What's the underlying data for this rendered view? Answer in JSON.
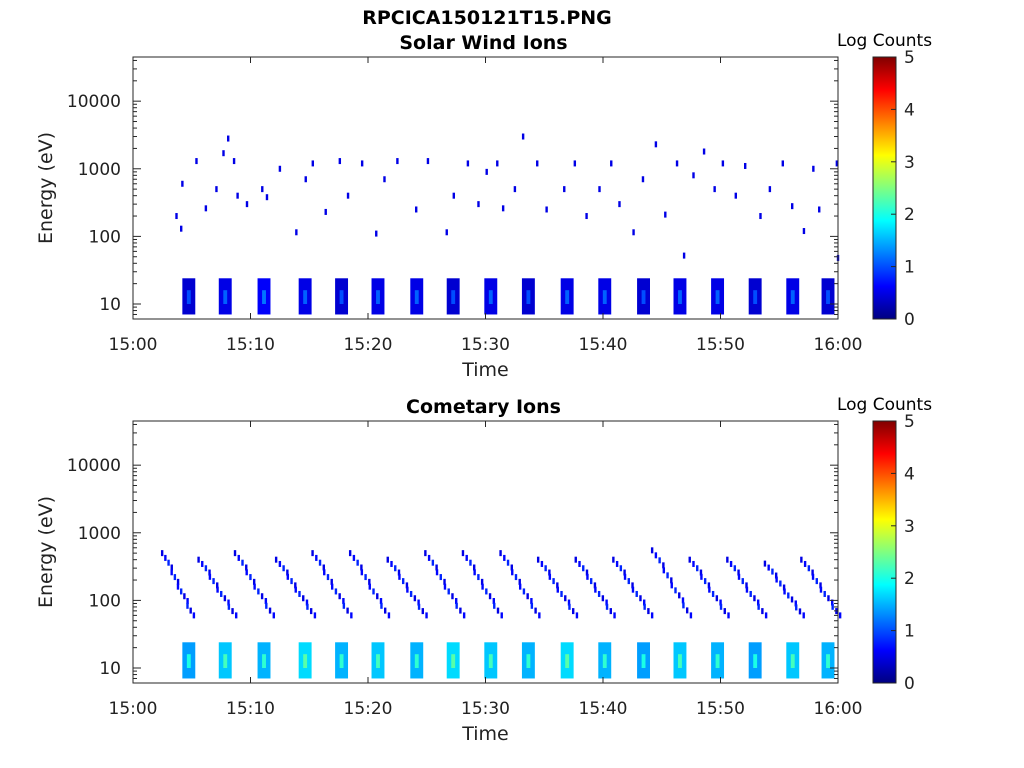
{
  "figure": {
    "title": "RPCICA150121T15.PNG"
  },
  "colors": {
    "colormap": [
      "#000080",
      "#0000ff",
      "#0080ff",
      "#00ffff",
      "#80ff80",
      "#ffff00",
      "#ff8000",
      "#ff0000",
      "#800000"
    ],
    "axis": "#262626",
    "background": "#ffffff"
  },
  "chart_data": [
    {
      "type": "heatmap",
      "title": "Solar Wind Ions",
      "xlabel": "Time",
      "ylabel": "Energy (eV)",
      "x_ticks": [
        "15:00",
        "15:10",
        "15:20",
        "15:30",
        "15:40",
        "15:50",
        "16:00"
      ],
      "x_range": [
        "15:00",
        "16:00"
      ],
      "y_ticks": [
        10,
        100,
        1000,
        10000
      ],
      "y_tick_labels": [
        "10",
        "100",
        "1000",
        "10000"
      ],
      "y_range": [
        6,
        45000
      ],
      "y_scale": "log",
      "colorbar": {
        "title": "Log Counts",
        "range": [
          0,
          5
        ],
        "ticks": [
          "0",
          "1",
          "2",
          "3",
          "4",
          "5"
        ]
      },
      "grid": false,
      "bursts": [
        {
          "t": 4.2,
          "c": 0.4
        },
        {
          "t": 7.3,
          "c": 0.5
        },
        {
          "t": 10.6,
          "c": 0.6
        },
        {
          "t": 14.1,
          "c": 0.5
        },
        {
          "t": 17.2,
          "c": 0.4
        },
        {
          "t": 20.3,
          "c": 0.5
        },
        {
          "t": 23.6,
          "c": 0.5
        },
        {
          "t": 26.7,
          "c": 0.4
        },
        {
          "t": 29.9,
          "c": 0.5
        },
        {
          "t": 33.1,
          "c": 0.4
        },
        {
          "t": 36.4,
          "c": 0.5
        },
        {
          "t": 39.6,
          "c": 0.5
        },
        {
          "t": 42.9,
          "c": 0.4
        },
        {
          "t": 46.0,
          "c": 0.5
        },
        {
          "t": 49.2,
          "c": 0.5
        },
        {
          "t": 52.4,
          "c": 0.4
        },
        {
          "t": 55.6,
          "c": 0.5
        },
        {
          "t": 58.6,
          "c": 0.4
        }
      ],
      "scatter": [
        {
          "t": 3.6,
          "e": 200,
          "c": 0.5
        },
        {
          "t": 4.1,
          "e": 600,
          "c": 0.5
        },
        {
          "t": 4.0,
          "e": 130,
          "c": 0.5
        },
        {
          "t": 5.3,
          "e": 1300,
          "c": 0.5
        },
        {
          "t": 6.1,
          "e": 260,
          "c": 0.5
        },
        {
          "t": 7.0,
          "e": 500,
          "c": 0.5
        },
        {
          "t": 7.6,
          "e": 1700,
          "c": 0.5
        },
        {
          "t": 8.0,
          "e": 2800,
          "c": 0.5
        },
        {
          "t": 8.5,
          "e": 1300,
          "c": 0.5
        },
        {
          "t": 8.8,
          "e": 400,
          "c": 0.5
        },
        {
          "t": 9.6,
          "e": 300,
          "c": 0.5
        },
        {
          "t": 10.9,
          "e": 500,
          "c": 0.5
        },
        {
          "t": 11.3,
          "e": 380,
          "c": 0.5
        },
        {
          "t": 12.4,
          "e": 1000,
          "c": 0.5
        },
        {
          "t": 13.8,
          "e": 115,
          "c": 0.5
        },
        {
          "t": 14.6,
          "e": 700,
          "c": 0.5
        },
        {
          "t": 15.2,
          "e": 1200,
          "c": 0.5
        },
        {
          "t": 16.3,
          "e": 230,
          "c": 0.5
        },
        {
          "t": 17.5,
          "e": 1300,
          "c": 0.5
        },
        {
          "t": 18.2,
          "e": 400,
          "c": 0.5
        },
        {
          "t": 19.4,
          "e": 1200,
          "c": 0.5
        },
        {
          "t": 20.6,
          "e": 110,
          "c": 0.5
        },
        {
          "t": 21.3,
          "e": 700,
          "c": 0.5
        },
        {
          "t": 22.4,
          "e": 1300,
          "c": 0.5
        },
        {
          "t": 24.0,
          "e": 250,
          "c": 0.5
        },
        {
          "t": 25.0,
          "e": 1300,
          "c": 0.5
        },
        {
          "t": 26.6,
          "e": 115,
          "c": 0.5
        },
        {
          "t": 27.2,
          "e": 400,
          "c": 0.5
        },
        {
          "t": 28.4,
          "e": 1200,
          "c": 0.5
        },
        {
          "t": 29.3,
          "e": 300,
          "c": 0.5
        },
        {
          "t": 30.0,
          "e": 900,
          "c": 0.5
        },
        {
          "t": 30.9,
          "e": 1200,
          "c": 0.5
        },
        {
          "t": 31.4,
          "e": 260,
          "c": 0.5
        },
        {
          "t": 32.4,
          "e": 500,
          "c": 0.5
        },
        {
          "t": 33.1,
          "e": 3000,
          "c": 0.5
        },
        {
          "t": 34.3,
          "e": 1200,
          "c": 0.5
        },
        {
          "t": 35.1,
          "e": 250,
          "c": 0.5
        },
        {
          "t": 36.6,
          "e": 500,
          "c": 0.5
        },
        {
          "t": 37.5,
          "e": 1200,
          "c": 0.5
        },
        {
          "t": 38.5,
          "e": 200,
          "c": 0.5
        },
        {
          "t": 39.6,
          "e": 500,
          "c": 0.5
        },
        {
          "t": 40.6,
          "e": 1200,
          "c": 0.5
        },
        {
          "t": 41.3,
          "e": 300,
          "c": 0.5
        },
        {
          "t": 42.5,
          "e": 115,
          "c": 0.5
        },
        {
          "t": 43.3,
          "e": 700,
          "c": 0.5
        },
        {
          "t": 44.4,
          "e": 2300,
          "c": 0.5
        },
        {
          "t": 45.2,
          "e": 210,
          "c": 0.5
        },
        {
          "t": 46.2,
          "e": 1200,
          "c": 0.5
        },
        {
          "t": 46.8,
          "e": 52,
          "c": 0.5
        },
        {
          "t": 47.6,
          "e": 800,
          "c": 0.5
        },
        {
          "t": 48.5,
          "e": 1800,
          "c": 0.5
        },
        {
          "t": 49.4,
          "e": 500,
          "c": 0.5
        },
        {
          "t": 50.1,
          "e": 1200,
          "c": 0.5
        },
        {
          "t": 51.2,
          "e": 400,
          "c": 0.5
        },
        {
          "t": 52.0,
          "e": 1100,
          "c": 0.5
        },
        {
          "t": 53.3,
          "e": 200,
          "c": 0.5
        },
        {
          "t": 54.1,
          "e": 500,
          "c": 0.5
        },
        {
          "t": 55.2,
          "e": 1200,
          "c": 0.5
        },
        {
          "t": 56.0,
          "e": 280,
          "c": 0.5
        },
        {
          "t": 57.0,
          "e": 120,
          "c": 0.5
        },
        {
          "t": 57.8,
          "e": 1000,
          "c": 0.5
        },
        {
          "t": 58.3,
          "e": 250,
          "c": 0.5
        },
        {
          "t": 59.8,
          "e": 1200,
          "c": 0.5
        },
        {
          "t": 59.9,
          "e": 48,
          "c": 0.5
        }
      ]
    },
    {
      "type": "heatmap",
      "title": "Cometary Ions",
      "xlabel": "Time",
      "ylabel": "Energy (eV)",
      "x_ticks": [
        "15:00",
        "15:10",
        "15:20",
        "15:30",
        "15:40",
        "15:50",
        "16:00"
      ],
      "x_range": [
        "15:00",
        "16:00"
      ],
      "y_ticks": [
        10,
        100,
        1000,
        10000
      ],
      "y_tick_labels": [
        "10",
        "100",
        "1000",
        "10000"
      ],
      "y_range": [
        6,
        45000
      ],
      "y_scale": "log",
      "colorbar": {
        "title": "Log Counts",
        "range": [
          0,
          5
        ],
        "ticks": [
          "0",
          "1",
          "2",
          "3",
          "4",
          "5"
        ]
      },
      "grid": false,
      "bursts": [
        {
          "t": 4.2,
          "c": 1.4
        },
        {
          "t": 7.3,
          "c": 1.6
        },
        {
          "t": 10.6,
          "c": 1.5
        },
        {
          "t": 14.1,
          "c": 1.7
        },
        {
          "t": 17.2,
          "c": 1.5
        },
        {
          "t": 20.3,
          "c": 1.6
        },
        {
          "t": 23.6,
          "c": 1.5
        },
        {
          "t": 26.7,
          "c": 1.7
        },
        {
          "t": 29.9,
          "c": 1.6
        },
        {
          "t": 33.1,
          "c": 1.5
        },
        {
          "t": 36.4,
          "c": 1.7
        },
        {
          "t": 39.6,
          "c": 1.5
        },
        {
          "t": 42.9,
          "c": 1.4
        },
        {
          "t": 46.0,
          "c": 1.6
        },
        {
          "t": 49.2,
          "c": 1.5
        },
        {
          "t": 52.4,
          "c": 1.4
        },
        {
          "t": 55.6,
          "c": 1.6
        },
        {
          "t": 58.6,
          "c": 1.5
        }
      ],
      "sweeps": [
        {
          "t_start": 2.5,
          "t_end": 5.0,
          "e_start": 500,
          "e_end": 60
        },
        {
          "t_start": 5.6,
          "t_end": 8.6,
          "e_start": 400,
          "e_end": 60
        },
        {
          "t_start": 8.7,
          "t_end": 11.8,
          "e_start": 500,
          "e_end": 60
        },
        {
          "t_start": 12.2,
          "t_end": 15.3,
          "e_start": 400,
          "e_end": 60
        },
        {
          "t_start": 15.3,
          "t_end": 18.4,
          "e_start": 500,
          "e_end": 60
        },
        {
          "t_start": 18.5,
          "t_end": 21.6,
          "e_start": 500,
          "e_end": 60
        },
        {
          "t_start": 21.7,
          "t_end": 24.8,
          "e_start": 400,
          "e_end": 60
        },
        {
          "t_start": 24.9,
          "t_end": 28.0,
          "e_start": 500,
          "e_end": 60
        },
        {
          "t_start": 28.1,
          "t_end": 31.2,
          "e_start": 500,
          "e_end": 60
        },
        {
          "t_start": 31.3,
          "t_end": 34.4,
          "e_start": 500,
          "e_end": 60
        },
        {
          "t_start": 34.5,
          "t_end": 37.6,
          "e_start": 400,
          "e_end": 60
        },
        {
          "t_start": 37.7,
          "t_end": 40.8,
          "e_start": 400,
          "e_end": 60
        },
        {
          "t_start": 40.9,
          "t_end": 44.0,
          "e_start": 400,
          "e_end": 60
        },
        {
          "t_start": 44.2,
          "t_end": 47.3,
          "e_start": 550,
          "e_end": 60
        },
        {
          "t_start": 47.4,
          "t_end": 50.5,
          "e_start": 400,
          "e_end": 60
        },
        {
          "t_start": 50.6,
          "t_end": 53.7,
          "e_start": 400,
          "e_end": 60
        },
        {
          "t_start": 53.8,
          "t_end": 56.9,
          "e_start": 350,
          "e_end": 60
        },
        {
          "t_start": 56.9,
          "t_end": 60.0,
          "e_start": 400,
          "e_end": 60
        }
      ]
    }
  ]
}
